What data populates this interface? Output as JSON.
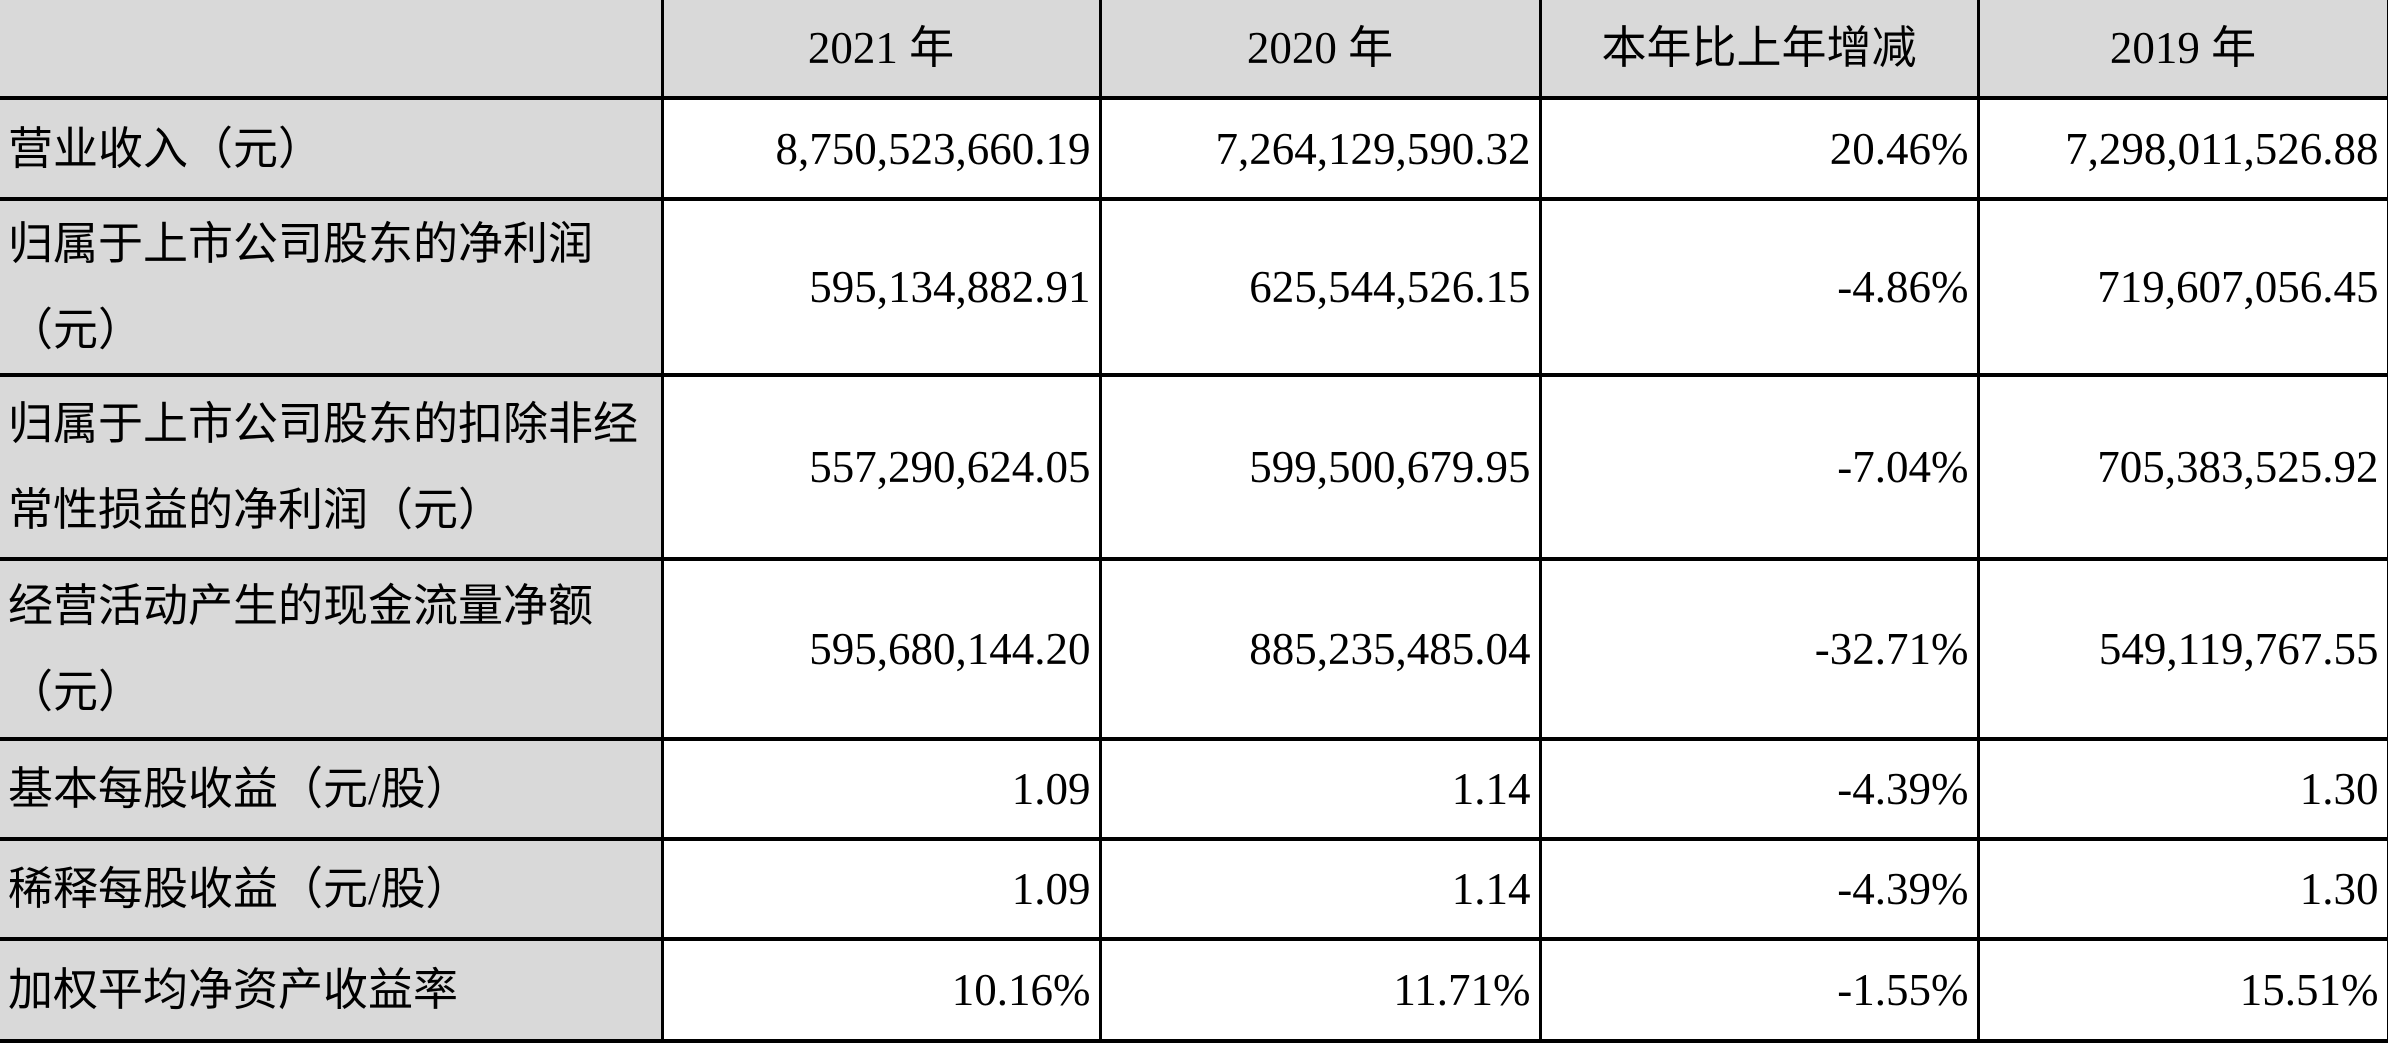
{
  "table": {
    "colors": {
      "header_bg": "#d9d9d9",
      "label_column_bg": "#d9d9d9",
      "cell_bg": "#ffffff",
      "border": "#000000",
      "text": "#000000"
    },
    "columns": [
      "",
      "2021 年",
      "2020 年",
      "本年比上年增减",
      "2019 年"
    ],
    "rows": [
      {
        "label": "营业收入（元）",
        "values": [
          "8,750,523,660.19",
          "7,264,129,590.32",
          "20.46%",
          "7,298,011,526.88"
        ]
      },
      {
        "label": "归属于上市公司股东的净利润\n（元）",
        "values": [
          "595,134,882.91",
          "625,544,526.15",
          "-4.86%",
          "719,607,056.45"
        ]
      },
      {
        "label": "归属于上市公司股东的扣除非经\n常性损益的净利润（元）",
        "values": [
          "557,290,624.05",
          "599,500,679.95",
          "-7.04%",
          "705,383,525.92"
        ]
      },
      {
        "label": "经营活动产生的现金流量净额\n（元）",
        "values": [
          "595,680,144.20",
          "885,235,485.04",
          "-32.71%",
          "549,119,767.55"
        ]
      },
      {
        "label": "基本每股收益（元/股）",
        "values": [
          "1.09",
          "1.14",
          "-4.39%",
          "1.30"
        ]
      },
      {
        "label": "稀释每股收益（元/股）",
        "values": [
          "1.09",
          "1.14",
          "-4.39%",
          "1.30"
        ]
      },
      {
        "label": "加权平均净资产收益率",
        "values": [
          "10.16%",
          "11.71%",
          "-1.55%",
          "15.51%"
        ]
      }
    ]
  }
}
